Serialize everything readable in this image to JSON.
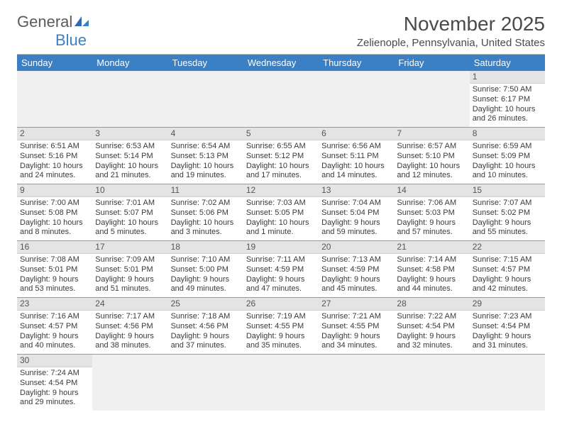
{
  "logo": {
    "word1": "General",
    "word2": "Blue"
  },
  "title": "November 2025",
  "location": "Zelienople, Pennsylvania, United States",
  "colors": {
    "header_bg": "#3b7fc4",
    "header_text": "#ffffff",
    "daynum_bg": "#e4e4e4",
    "row_border": "#6fa0d0",
    "body_text": "#3a3a3a",
    "title_text": "#4a4a4a",
    "logo_gray": "#5a5a5a",
    "logo_blue": "#3b7fc4",
    "page_bg": "#ffffff"
  },
  "fonts": {
    "month_title_pt": 28,
    "location_pt": 15,
    "weekday_pt": 13,
    "daynum_pt": 12,
    "body_pt": 11,
    "logo_pt": 22
  },
  "weekdays": [
    "Sunday",
    "Monday",
    "Tuesday",
    "Wednesday",
    "Thursday",
    "Friday",
    "Saturday"
  ],
  "weeks": [
    [
      null,
      null,
      null,
      null,
      null,
      null,
      {
        "n": "1",
        "sunrise": "7:50 AM",
        "sunset": "6:17 PM",
        "daylight": "10 hours and 26 minutes."
      }
    ],
    [
      {
        "n": "2",
        "sunrise": "6:51 AM",
        "sunset": "5:16 PM",
        "daylight": "10 hours and 24 minutes."
      },
      {
        "n": "3",
        "sunrise": "6:53 AM",
        "sunset": "5:14 PM",
        "daylight": "10 hours and 21 minutes."
      },
      {
        "n": "4",
        "sunrise": "6:54 AM",
        "sunset": "5:13 PM",
        "daylight": "10 hours and 19 minutes."
      },
      {
        "n": "5",
        "sunrise": "6:55 AM",
        "sunset": "5:12 PM",
        "daylight": "10 hours and 17 minutes."
      },
      {
        "n": "6",
        "sunrise": "6:56 AM",
        "sunset": "5:11 PM",
        "daylight": "10 hours and 14 minutes."
      },
      {
        "n": "7",
        "sunrise": "6:57 AM",
        "sunset": "5:10 PM",
        "daylight": "10 hours and 12 minutes."
      },
      {
        "n": "8",
        "sunrise": "6:59 AM",
        "sunset": "5:09 PM",
        "daylight": "10 hours and 10 minutes."
      }
    ],
    [
      {
        "n": "9",
        "sunrise": "7:00 AM",
        "sunset": "5:08 PM",
        "daylight": "10 hours and 8 minutes."
      },
      {
        "n": "10",
        "sunrise": "7:01 AM",
        "sunset": "5:07 PM",
        "daylight": "10 hours and 5 minutes."
      },
      {
        "n": "11",
        "sunrise": "7:02 AM",
        "sunset": "5:06 PM",
        "daylight": "10 hours and 3 minutes."
      },
      {
        "n": "12",
        "sunrise": "7:03 AM",
        "sunset": "5:05 PM",
        "daylight": "10 hours and 1 minute."
      },
      {
        "n": "13",
        "sunrise": "7:04 AM",
        "sunset": "5:04 PM",
        "daylight": "9 hours and 59 minutes."
      },
      {
        "n": "14",
        "sunrise": "7:06 AM",
        "sunset": "5:03 PM",
        "daylight": "9 hours and 57 minutes."
      },
      {
        "n": "15",
        "sunrise": "7:07 AM",
        "sunset": "5:02 PM",
        "daylight": "9 hours and 55 minutes."
      }
    ],
    [
      {
        "n": "16",
        "sunrise": "7:08 AM",
        "sunset": "5:01 PM",
        "daylight": "9 hours and 53 minutes."
      },
      {
        "n": "17",
        "sunrise": "7:09 AM",
        "sunset": "5:01 PM",
        "daylight": "9 hours and 51 minutes."
      },
      {
        "n": "18",
        "sunrise": "7:10 AM",
        "sunset": "5:00 PM",
        "daylight": "9 hours and 49 minutes."
      },
      {
        "n": "19",
        "sunrise": "7:11 AM",
        "sunset": "4:59 PM",
        "daylight": "9 hours and 47 minutes."
      },
      {
        "n": "20",
        "sunrise": "7:13 AM",
        "sunset": "4:59 PM",
        "daylight": "9 hours and 45 minutes."
      },
      {
        "n": "21",
        "sunrise": "7:14 AM",
        "sunset": "4:58 PM",
        "daylight": "9 hours and 44 minutes."
      },
      {
        "n": "22",
        "sunrise": "7:15 AM",
        "sunset": "4:57 PM",
        "daylight": "9 hours and 42 minutes."
      }
    ],
    [
      {
        "n": "23",
        "sunrise": "7:16 AM",
        "sunset": "4:57 PM",
        "daylight": "9 hours and 40 minutes."
      },
      {
        "n": "24",
        "sunrise": "7:17 AM",
        "sunset": "4:56 PM",
        "daylight": "9 hours and 38 minutes."
      },
      {
        "n": "25",
        "sunrise": "7:18 AM",
        "sunset": "4:56 PM",
        "daylight": "9 hours and 37 minutes."
      },
      {
        "n": "26",
        "sunrise": "7:19 AM",
        "sunset": "4:55 PM",
        "daylight": "9 hours and 35 minutes."
      },
      {
        "n": "27",
        "sunrise": "7:21 AM",
        "sunset": "4:55 PM",
        "daylight": "9 hours and 34 minutes."
      },
      {
        "n": "28",
        "sunrise": "7:22 AM",
        "sunset": "4:54 PM",
        "daylight": "9 hours and 32 minutes."
      },
      {
        "n": "29",
        "sunrise": "7:23 AM",
        "sunset": "4:54 PM",
        "daylight": "9 hours and 31 minutes."
      }
    ],
    [
      {
        "n": "30",
        "sunrise": "7:24 AM",
        "sunset": "4:54 PM",
        "daylight": "9 hours and 29 minutes."
      },
      null,
      null,
      null,
      null,
      null,
      null
    ]
  ],
  "labels": {
    "sunrise_prefix": "Sunrise: ",
    "sunset_prefix": "Sunset: ",
    "daylight_prefix": "Daylight: "
  }
}
